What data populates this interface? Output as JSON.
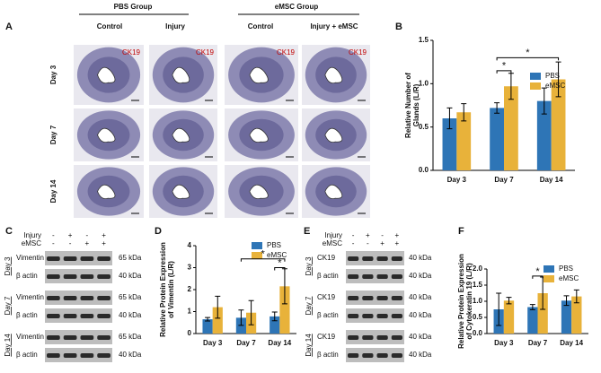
{
  "panel_labels": [
    "A",
    "B",
    "C",
    "D",
    "E",
    "F"
  ],
  "panel_a": {
    "groups": [
      {
        "title": "PBS Group",
        "columns": [
          "Control",
          "Injury"
        ]
      },
      {
        "title": "eMSC Group",
        "columns": [
          "Control",
          "Injury + eMSC"
        ]
      }
    ],
    "rows": [
      "Day 3",
      "Day 7",
      "Day 14"
    ],
    "stain": "CK19"
  },
  "panel_c": {
    "conditions": [
      {
        "name": "Injury",
        "signs": [
          "-",
          "+",
          "-",
          "+"
        ]
      },
      {
        "name": "eMSC",
        "signs": [
          "-",
          "-",
          "+",
          "+"
        ]
      }
    ],
    "days": [
      "Day 3",
      "Day 7",
      "Day 14"
    ],
    "bands": [
      {
        "name": "Vimentin",
        "size": "65 kDa"
      },
      {
        "name": "β actin",
        "size": "40 kDa"
      }
    ]
  },
  "panel_e": {
    "conditions": [
      {
        "name": "Injury",
        "signs": [
          "-",
          "+",
          "-",
          "+"
        ]
      },
      {
        "name": "eMSC",
        "signs": [
          "-",
          "-",
          "+",
          "+"
        ]
      }
    ],
    "days": [
      "Day 3",
      "Day 7",
      "Day 14"
    ],
    "bands": [
      {
        "name": "CK19",
        "size": "40 kDa"
      },
      {
        "name": "β actin",
        "size": "40 kDa"
      }
    ]
  },
  "chart_data": [
    {
      "type": "bar",
      "y_label": [
        "Relative Number of",
        "Glands (L/R)"
      ],
      "categories": [
        "Day 3",
        "Day 7",
        "Day 14"
      ],
      "series": [
        {
          "name": "PBS",
          "color": "#2e75b6",
          "values": [
            0.6,
            0.72,
            0.8
          ],
          "errors": [
            0.12,
            0.06,
            0.15
          ]
        },
        {
          "name": "eMSC",
          "color": "#e8b23a",
          "values": [
            0.67,
            0.97,
            1.05
          ],
          "errors": [
            0.1,
            0.15,
            0.2
          ]
        }
      ],
      "ylim": [
        0,
        1.5
      ],
      "yticks": [
        {
          "value": 0,
          "label": "0.0"
        },
        {
          "value": 0.5,
          "label": "0.5"
        },
        {
          "value": 1,
          "label": "1.0"
        },
        {
          "value": 1.5,
          "label": "1.5"
        }
      ],
      "legend": "upper right",
      "annotations": [
        "*",
        "*"
      ]
    },
    {
      "type": "bar",
      "y_label": [
        "Relative Protein Expression",
        "of Vimentin (L/R)"
      ],
      "categories": [
        "Day 3",
        "Day 7",
        "Day 14"
      ],
      "series": [
        {
          "name": "PBS",
          "color": "#2e75b6",
          "values": [
            0.65,
            0.72,
            0.78
          ],
          "errors": [
            0.08,
            0.35,
            0.2
          ]
        },
        {
          "name": "eMSC",
          "color": "#e8b23a",
          "values": [
            1.2,
            0.95,
            2.15
          ],
          "errors": [
            0.5,
            0.55,
            0.8
          ]
        }
      ],
      "ylim": [
        0,
        4
      ],
      "yticks": [
        0,
        1,
        2,
        3,
        4
      ],
      "legend": "upper right",
      "annotations": [
        "*",
        "*"
      ]
    },
    {
      "type": "bar",
      "y_label": [
        "Relative Protein Expression",
        "of Cytokeratin 19 (L/R)"
      ],
      "categories": [
        "Day 3",
        "Day 7",
        "Day 14"
      ],
      "series": [
        {
          "name": "PBS",
          "color": "#2e75b6",
          "values": [
            0.75,
            0.82,
            1.02
          ],
          "errors": [
            0.5,
            0.08,
            0.15
          ]
        },
        {
          "name": "eMSC",
          "color": "#e8b23a",
          "values": [
            1.02,
            1.25,
            1.15
          ],
          "errors": [
            0.1,
            0.5,
            0.2
          ]
        }
      ],
      "ylim": [
        0,
        2
      ],
      "yticks": [
        {
          "value": 0,
          "label": "0.0"
        },
        {
          "value": 0.5,
          "label": "0.5"
        },
        {
          "value": 1,
          "label": "1.0"
        },
        {
          "value": 1.5,
          "label": "1.5"
        },
        {
          "value": 2,
          "label": "2.0"
        }
      ],
      "legend": "upper right",
      "annotations": [
        "*"
      ]
    }
  ]
}
